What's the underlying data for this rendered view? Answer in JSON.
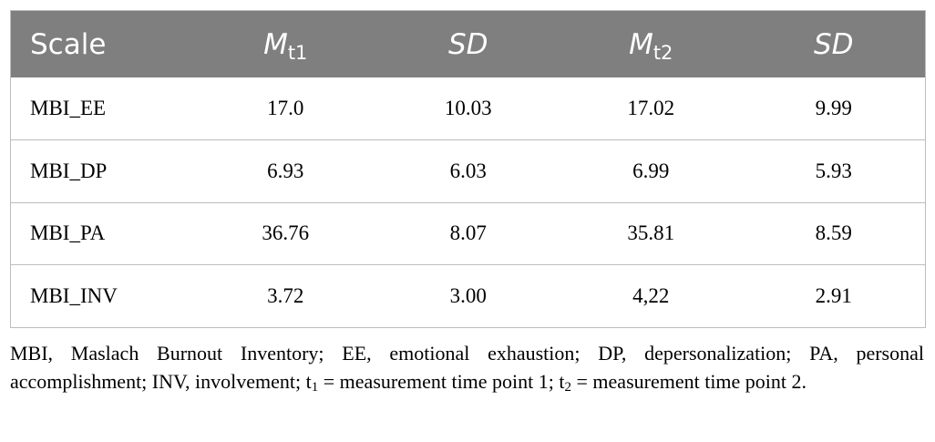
{
  "table": {
    "headers": {
      "scale": "Scale",
      "m_symbol": "M",
      "t1_sub": "t1",
      "sd1": "SD",
      "t2_sub": "t2",
      "sd2": "SD"
    },
    "rows": [
      {
        "scale": "MBI_EE",
        "m_t1": "17.0",
        "sd_t1": "10.03",
        "m_t2": "17.02",
        "sd_t2": "9.99"
      },
      {
        "scale": "MBI_DP",
        "m_t1": "6.93",
        "sd_t1": "6.03",
        "m_t2": "6.99",
        "sd_t2": "5.93"
      },
      {
        "scale": "MBI_PA",
        "m_t1": "36.76",
        "sd_t1": "8.07",
        "m_t2": "35.81",
        "sd_t2": "8.59"
      },
      {
        "scale": "MBI_INV",
        "m_t1": "3.72",
        "sd_t1": "3.00",
        "m_t2": "4,22",
        "sd_t2": "2.91"
      }
    ]
  },
  "footnote": {
    "part1": "MBI, Maslach Burnout Inventory; EE, emotional exhaustion; DP, depersonalization; PA, personal accomplishment; INV, involvement; t",
    "sub1": "1",
    "part2": " = measurement time point 1; t",
    "sub2": "2",
    "part3": " = measurement time point 2."
  }
}
